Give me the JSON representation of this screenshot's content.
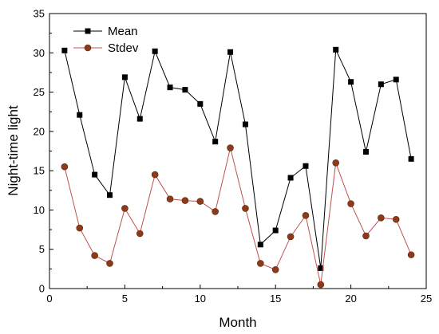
{
  "chart_data": {
    "type": "line",
    "title": "",
    "xlabel": "Month",
    "ylabel": "Night-time light",
    "xlim": [
      0,
      25
    ],
    "ylim": [
      0,
      35
    ],
    "xticks": [
      0,
      5,
      10,
      15,
      20,
      25
    ],
    "yticks": [
      0,
      5,
      10,
      15,
      20,
      25,
      30,
      35
    ],
    "grid": false,
    "legend_position": "top-left",
    "x": [
      1,
      2,
      3,
      4,
      5,
      6,
      7,
      8,
      9,
      10,
      11,
      12,
      13,
      14,
      15,
      16,
      17,
      18,
      19,
      20,
      21,
      22,
      23,
      24
    ],
    "series": [
      {
        "name": "Mean",
        "marker": "square",
        "color": "#000000",
        "marker_color": "#000000",
        "values": [
          30.3,
          22.1,
          14.5,
          11.9,
          26.9,
          21.6,
          30.2,
          25.6,
          25.3,
          23.5,
          18.7,
          30.1,
          20.9,
          5.6,
          7.4,
          14.1,
          15.6,
          2.6,
          30.4,
          26.3,
          17.4,
          26.0,
          26.6,
          16.5
        ]
      },
      {
        "name": "Stdev",
        "marker": "circle",
        "color": "#c0504d",
        "marker_color": "#8b3a1a",
        "values": [
          15.5,
          7.7,
          4.2,
          3.2,
          10.2,
          7.0,
          14.5,
          11.4,
          11.2,
          11.1,
          9.8,
          17.9,
          10.2,
          3.2,
          2.4,
          6.6,
          9.3,
          0.5,
          16.0,
          10.8,
          6.7,
          9.0,
          8.8,
          4.3
        ]
      }
    ]
  }
}
